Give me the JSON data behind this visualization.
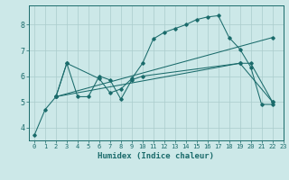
{
  "xlabel": "Humidex (Indice chaleur)",
  "bg_color": "#cce8e8",
  "grid_color": "#aacccc",
  "line_color": "#1a6b6b",
  "xlim": [
    -0.5,
    23
  ],
  "ylim": [
    3.5,
    8.75
  ],
  "xticks": [
    0,
    1,
    2,
    3,
    4,
    5,
    6,
    7,
    8,
    9,
    10,
    11,
    12,
    13,
    14,
    15,
    16,
    17,
    18,
    19,
    20,
    21,
    22,
    23
  ],
  "yticks": [
    4,
    5,
    6,
    7,
    8
  ],
  "series": [
    {
      "x": [
        0,
        1,
        2,
        3,
        6,
        7,
        8,
        9,
        10,
        11,
        12,
        13,
        14,
        15,
        16,
        17,
        18,
        19,
        20,
        21,
        22
      ],
      "y": [
        3.7,
        4.7,
        5.2,
        6.5,
        5.9,
        5.35,
        5.5,
        5.9,
        6.5,
        7.45,
        7.7,
        7.85,
        8.0,
        8.2,
        8.3,
        8.35,
        7.5,
        7.05,
        6.35,
        4.9,
        4.9
      ]
    },
    {
      "x": [
        2,
        3,
        4,
        5,
        6,
        7,
        8,
        9,
        10,
        19,
        20,
        22
      ],
      "y": [
        5.2,
        6.5,
        5.2,
        5.2,
        6.0,
        5.85,
        5.1,
        5.85,
        6.0,
        6.5,
        6.5,
        5.0
      ]
    },
    {
      "x": [
        2,
        22
      ],
      "y": [
        5.2,
        7.5
      ]
    },
    {
      "x": [
        2,
        19,
        22
      ],
      "y": [
        5.2,
        6.5,
        5.0
      ]
    }
  ]
}
